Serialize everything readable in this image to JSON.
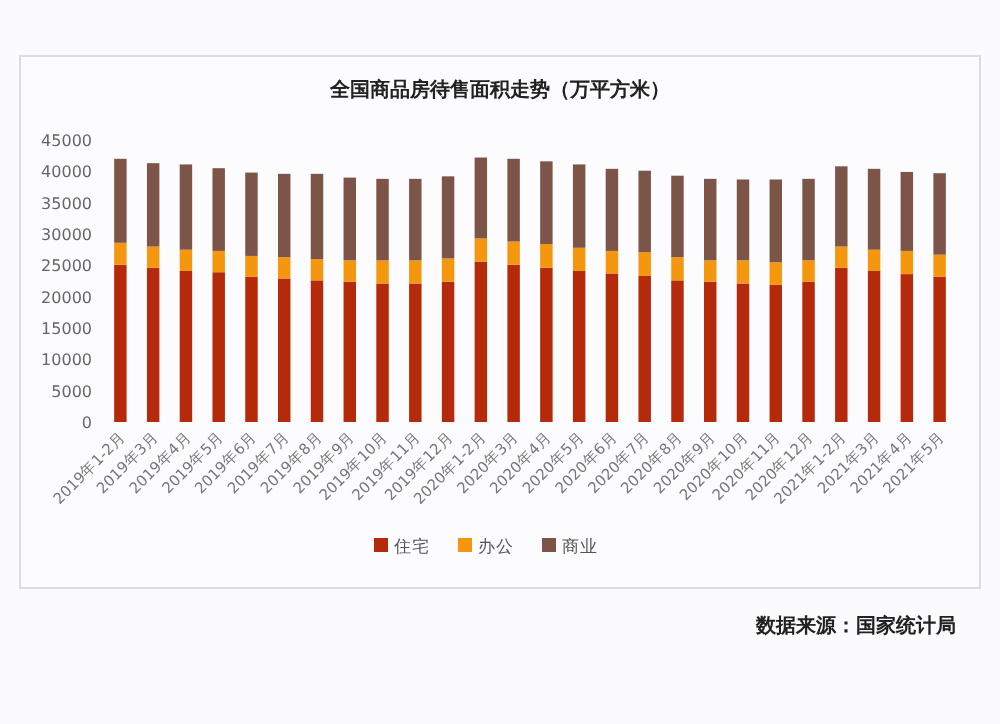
{
  "chart_data": {
    "type": "bar",
    "title": "全国商品房待售面积走势（万平方米）",
    "stacked": true,
    "categories": [
      "2019年1-2月",
      "2019年3月",
      "2019年4月",
      "2019年5月",
      "2019年6月",
      "2019年7月",
      "2019年8月",
      "2019年9月",
      "2019年10月",
      "2019年11月",
      "2019年12月",
      "2020年1-2月",
      "2020年3月",
      "2020年4月",
      "2020年5月",
      "2020年6月",
      "2020年7月",
      "2020年8月",
      "2020年9月",
      "2020年10月",
      "2020年11月",
      "2020年12月",
      "2021年1-2月",
      "2021年3月",
      "2021年4月",
      "2021年5月"
    ],
    "series": [
      {
        "name": "住宅",
        "color": "#b52a0a",
        "values": [
          25100,
          24600,
          24100,
          23900,
          23200,
          22900,
          22600,
          22400,
          22100,
          22100,
          22400,
          25600,
          25100,
          24600,
          24100,
          23700,
          23300,
          22600,
          22400,
          22100,
          21900,
          22400,
          24600,
          24100,
          23600,
          23200
        ]
      },
      {
        "name": "办公",
        "color": "#f5960f",
        "values": [
          3500,
          3400,
          3400,
          3400,
          3300,
          3400,
          3400,
          3400,
          3700,
          3700,
          3700,
          3700,
          3700,
          3800,
          3700,
          3600,
          3800,
          3700,
          3400,
          3700,
          3600,
          3400,
          3400,
          3400,
          3700,
          3500
        ]
      },
      {
        "name": "商业",
        "color": "#7d5548",
        "values": [
          13400,
          13300,
          13600,
          13200,
          13300,
          13300,
          13600,
          13200,
          13000,
          13000,
          13100,
          12900,
          13200,
          13200,
          13300,
          13100,
          13000,
          13000,
          13000,
          12900,
          13200,
          13000,
          12800,
          12900,
          12600,
          13000
        ]
      }
    ],
    "ylim": [
      0,
      45000
    ],
    "yticks": [
      0,
      5000,
      10000,
      15000,
      20000,
      25000,
      30000,
      35000,
      40000,
      45000
    ],
    "grid": false,
    "legend": "bottom",
    "annotations": [
      "数据来源：国家统计局"
    ]
  }
}
